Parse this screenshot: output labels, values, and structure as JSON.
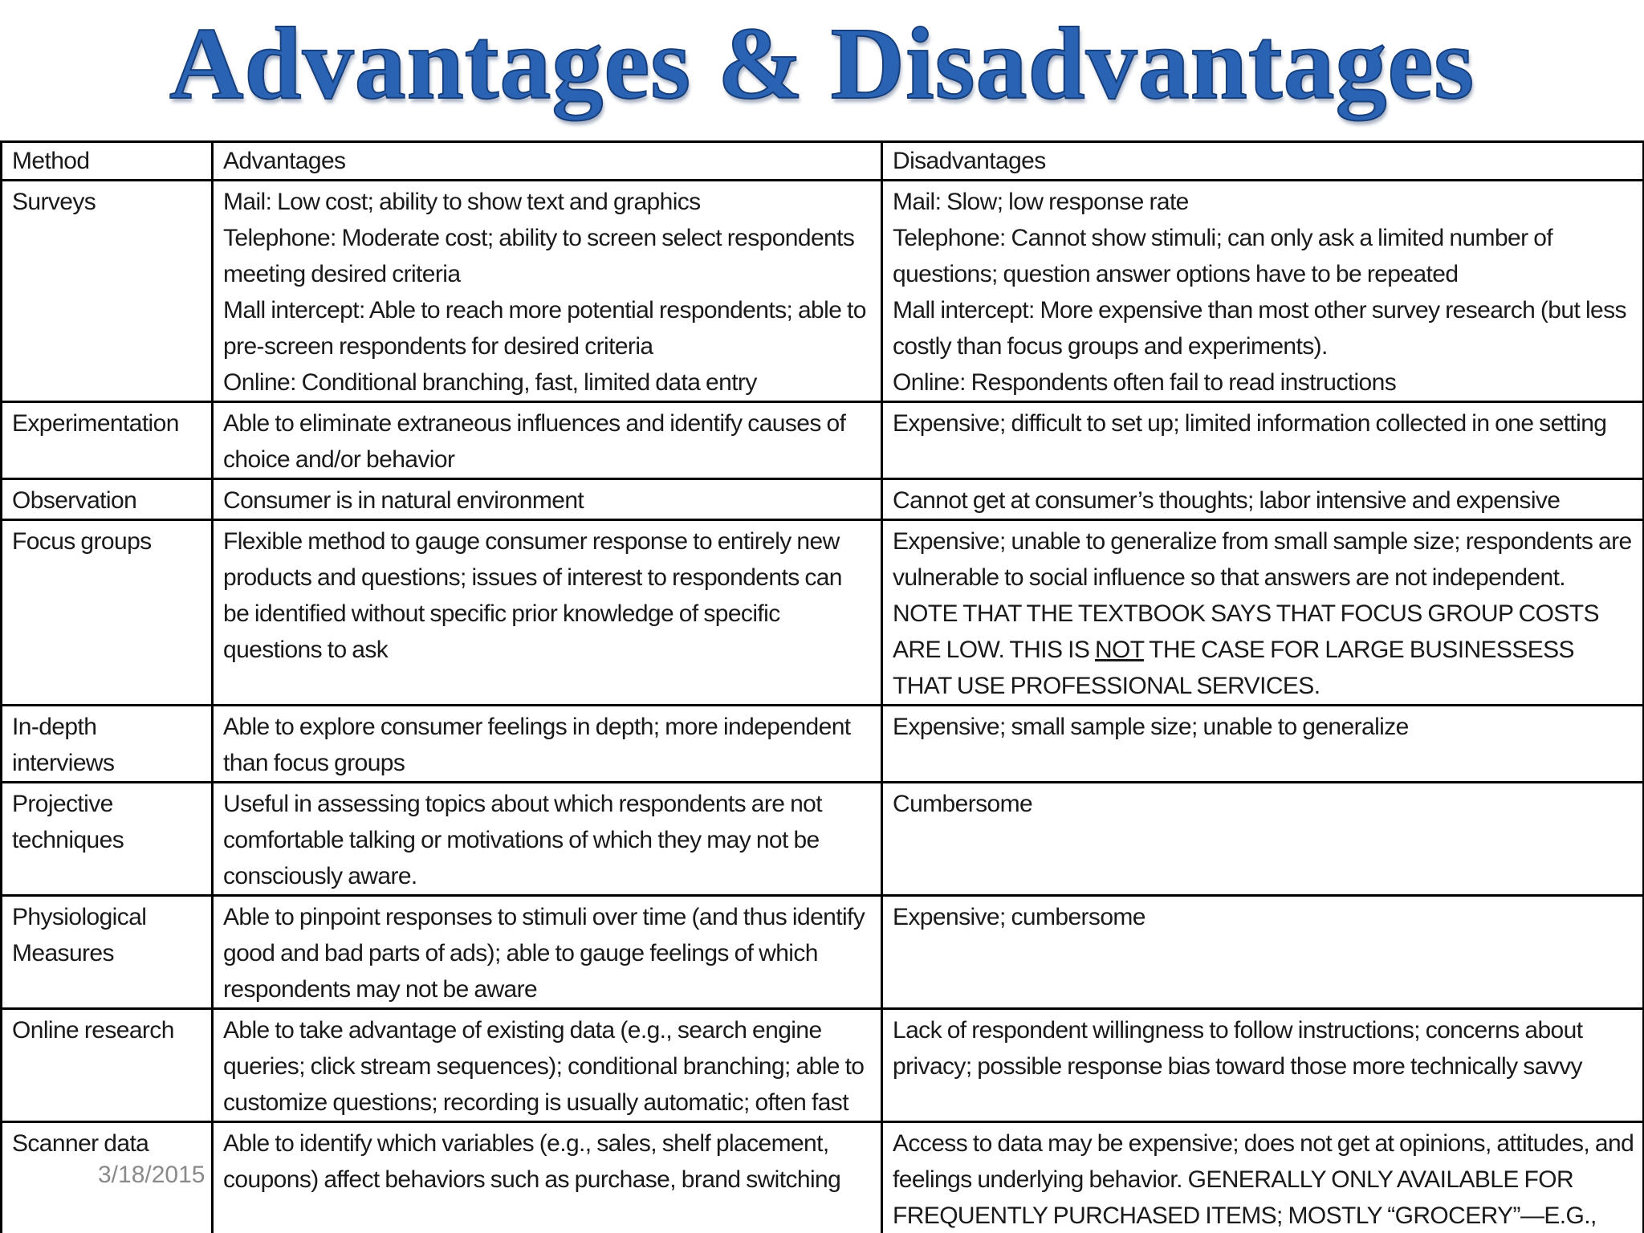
{
  "slide": {
    "title": "Advantages & Disadvantages",
    "date": "3/18/2015",
    "title_color": "#2a62b4"
  },
  "table": {
    "headers": [
      "Method",
      "Advantages",
      "Disadvantages"
    ],
    "rows": [
      {
        "method": "Surveys",
        "advantages": [
          "Mail:  Low cost; ability to show text and graphics",
          "Telephone:  Moderate cost; ability to screen select respondents meeting desired criteria",
          "Mall intercept:  Able to reach more potential respondents; able to pre-screen respondents for desired criteria",
          "Online:  Conditional branching, fast, limited data entry"
        ],
        "disadvantages": [
          "Mail:  Slow; low response rate",
          "Telephone:  Cannot show stimuli; can only ask a limited number of questions; question answer options have to be repeated",
          "Mall intercept:  More expensive than most other survey research (but less costly than focus groups and experiments).",
          "Online:  Respondents often fail to read instructions"
        ]
      },
      {
        "method": "Experimentation",
        "advantages": [
          "Able to eliminate extraneous influences and identify causes of choice and/or behavior"
        ],
        "disadvantages": [
          "Expensive; difficult to set up; limited information collected in one setting"
        ]
      },
      {
        "method": "Observation",
        "advantages": [
          "Consumer is in natural environment"
        ],
        "disadvantages": [
          "Cannot get at consumer’s thoughts; labor intensive and expensive"
        ]
      },
      {
        "method": "Focus groups",
        "advantages": [
          "Flexible method to gauge consumer response to entirely new products and questions; issues of interest to respondents can be identified without specific prior knowledge of specific questions to ask"
        ],
        "disadvantages": {
          "part1": "Expensive; unable to generalize from small sample size; respondents are vulnerable to social influence so that answers are not independent.  NOTE THAT THE TEXTBOOK SAYS THAT FOCUS GROUP COSTS ARE LOW.  THIS IS ",
          "underlined": "NOT",
          "part2": " THE CASE FOR LARGE BUSINESSESS THAT USE PROFESSIONAL SERVICES."
        }
      },
      {
        "method": "In-depth interviews",
        "advantages": [
          "Able to explore consumer feelings in depth; more independent than focus groups"
        ],
        "disadvantages": [
          "Expensive; small sample size; unable to generalize"
        ]
      },
      {
        "method": "Projective techniques",
        "advantages": [
          "Useful in assessing topics about which respondents are not comfortable talking or motivations of which they may not be consciously aware."
        ],
        "disadvantages": [
          "Cumbersome"
        ]
      },
      {
        "method": "Physiological Measures",
        "advantages": [
          "Able to pinpoint responses to stimuli over time (and thus identify good and bad parts of ads); able to gauge feelings of which respondents may not be aware"
        ],
        "disadvantages": [
          "Expensive; cumbersome"
        ]
      },
      {
        "method": "Online research",
        "advantages": [
          "Able to take advantage of existing data (e.g., search engine queries; click stream sequences); conditional branching; able to customize questions; recording is usually automatic; often fast"
        ],
        "disadvantages": [
          "Lack of respondent willingness to follow instructions; concerns about privacy; possible response bias toward those more technically savvy"
        ]
      },
      {
        "method": "Scanner data",
        "advantages": [
          "Able to identify which variables (e.g., sales, shelf placement, coupons) affect behaviors such as purchase, brand switching"
        ],
        "disadvantages": [
          "Access to data may be expensive; does not get at opinions, attitudes, and feelings underlying behavior.  GENERALLY ONLY AVAILABLE FOR FREQUENTLY PURCHASED ITEMS; MOSTLY “GROCERY”—E.G., FOOD, PAPER TOWELS, SOAP."
        ]
      }
    ]
  }
}
